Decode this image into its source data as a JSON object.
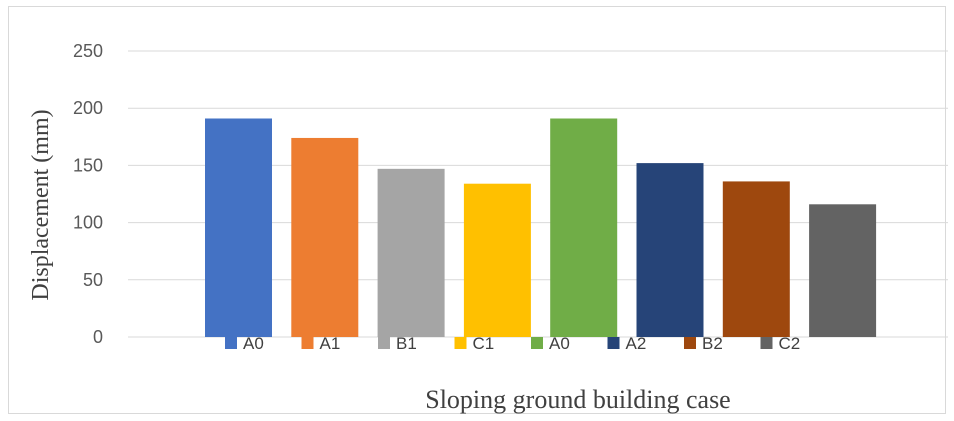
{
  "chart_data": {
    "type": "bar",
    "title": "",
    "xlabel": "Sloping ground building case",
    "ylabel": "Displacement (mm)",
    "ylim": [
      0,
      250
    ],
    "yticks": [
      0,
      50,
      100,
      150,
      200,
      250
    ],
    "grid": "horizontal",
    "legend_position": "bottom",
    "series": [
      {
        "name": "A0",
        "value": 191,
        "color": "#4472C4"
      },
      {
        "name": "A1",
        "value": 174,
        "color": "#ED7D31"
      },
      {
        "name": "B1",
        "value": 147,
        "color": "#A5A5A5"
      },
      {
        "name": "C1",
        "value": 134,
        "color": "#FFC000"
      },
      {
        "name": "A0",
        "value": 191,
        "color": "#70AD47"
      },
      {
        "name": "A2",
        "value": 152,
        "color": "#264478"
      },
      {
        "name": "B2",
        "value": 136,
        "color": "#9E480E"
      },
      {
        "name": "C2",
        "value": 116,
        "color": "#636363"
      }
    ]
  }
}
